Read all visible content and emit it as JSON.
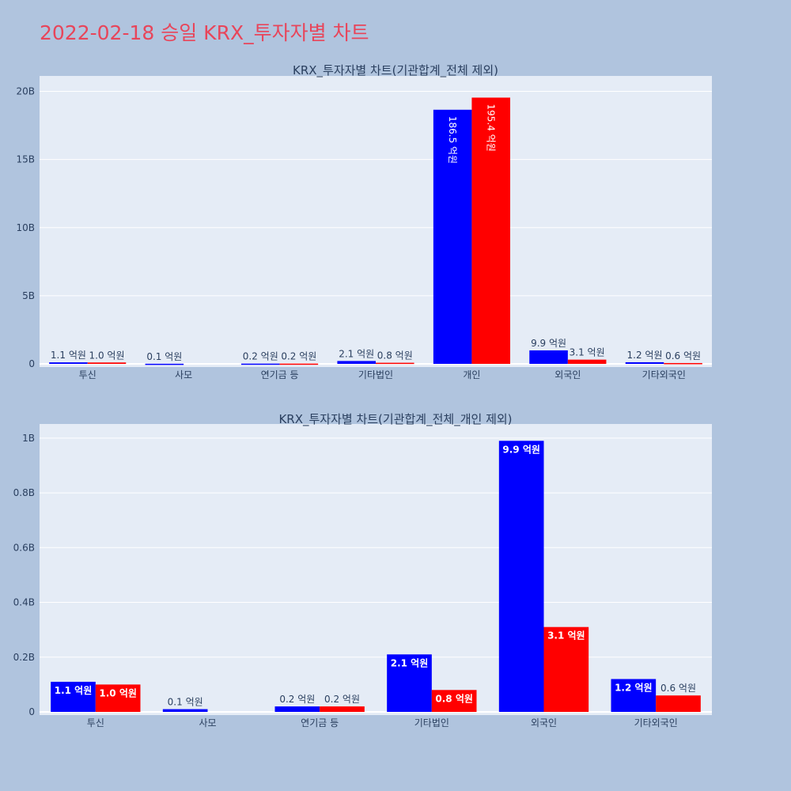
{
  "title": "2022-02-18 승일 KRX_투자자별 차트",
  "colors": {
    "background": "#b0c4de",
    "plot_bg": "#e5ecf6",
    "title": "#e8455a",
    "series_a": "#0000ff",
    "series_b": "#ff0000"
  },
  "chart_data": [
    {
      "type": "bar",
      "title": "KRX_투자자별 차트(기관합계_전체 제외)",
      "categories": [
        "투신",
        "사모",
        "연기금 등",
        "기타법인",
        "개인",
        "외국인",
        "기타외국인"
      ],
      "y_ticks": [
        0,
        5000000000,
        10000000000,
        15000000000,
        20000000000
      ],
      "y_tick_labels": [
        "0",
        "5B",
        "10B",
        "15B",
        "20B"
      ],
      "ylim": [
        0,
        20900000000
      ],
      "grid": true,
      "series": [
        {
          "values": [
            110000000,
            10000000,
            20000000,
            210000000,
            18650000000,
            990000000,
            120000000
          ],
          "labels": [
            "1.1 억원",
            "0.1 억원",
            "0.2 억원",
            "2.1 억원",
            "186.5 억원",
            "9.9 억원",
            "1.2 억원"
          ]
        },
        {
          "values": [
            100000000,
            0,
            20000000,
            80000000,
            19540000000,
            310000000,
            60000000
          ],
          "labels": [
            "1.0 억원",
            "",
            "0.2 억원",
            "0.8 억원",
            "195.4 억원",
            "3.1 억원",
            "0.6 억원"
          ]
        }
      ]
    },
    {
      "type": "bar",
      "title": "KRX_투자자별 차트(기관합계_전체_개인 제외)",
      "categories": [
        "투신",
        "사모",
        "연기금 등",
        "기타법인",
        "외국인",
        "기타외국인"
      ],
      "y_ticks": [
        0,
        200000000,
        400000000,
        600000000,
        800000000,
        1000000000
      ],
      "y_tick_labels": [
        "0",
        "0.2B",
        "0.4B",
        "0.6B",
        "0.8B",
        "1B"
      ],
      "ylim": [
        0,
        1040000000
      ],
      "grid": true,
      "series": [
        {
          "values": [
            110000000,
            10000000,
            20000000,
            210000000,
            990000000,
            120000000
          ],
          "labels": [
            "1.1 억원",
            "0.1 억원",
            "0.2 억원",
            "2.1 억원",
            "9.9 억원",
            "1.2 억원"
          ]
        },
        {
          "values": [
            100000000,
            0,
            20000000,
            80000000,
            310000000,
            60000000
          ],
          "labels": [
            "1.0 억원",
            "",
            "0.2 억원",
            "0.8 억원",
            "3.1 억원",
            "0.6 억원"
          ]
        }
      ]
    }
  ]
}
